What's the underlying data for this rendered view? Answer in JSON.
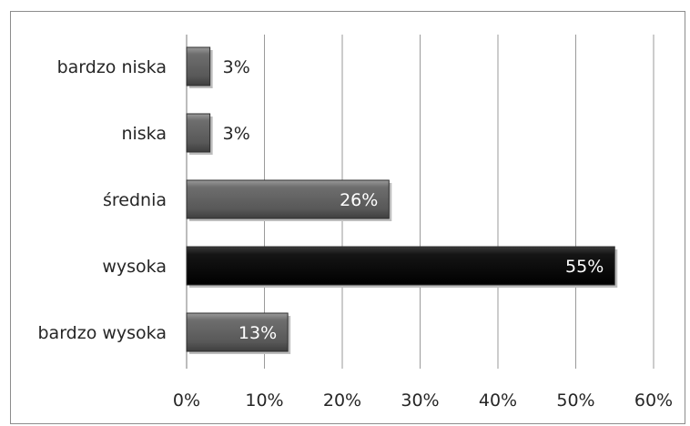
{
  "chart_data": {
    "type": "bar",
    "orientation": "horizontal",
    "title": "",
    "xlabel": "",
    "ylabel": "",
    "categories": [
      "bardzo niska",
      "niska",
      "średnia",
      "wysoka",
      "bardzo wysoka"
    ],
    "values": [
      3,
      3,
      26,
      55,
      13
    ],
    "value_labels": [
      "3%",
      "3%",
      "26%",
      "55%",
      "13%"
    ],
    "xlim": [
      0,
      60
    ],
    "x_ticks": [
      0,
      10,
      20,
      30,
      40,
      50,
      60
    ],
    "x_tick_labels": [
      "0%",
      "10%",
      "20%",
      "30%",
      "40%",
      "50%",
      "60%"
    ],
    "grid": true,
    "legend": "none",
    "colors": {
      "default_bar": "#5f5f5f",
      "highlight_bar": "#111111",
      "highlight_category": "wysoka",
      "grid": "#9a9a9a",
      "frame": "#8c8c8c"
    }
  }
}
